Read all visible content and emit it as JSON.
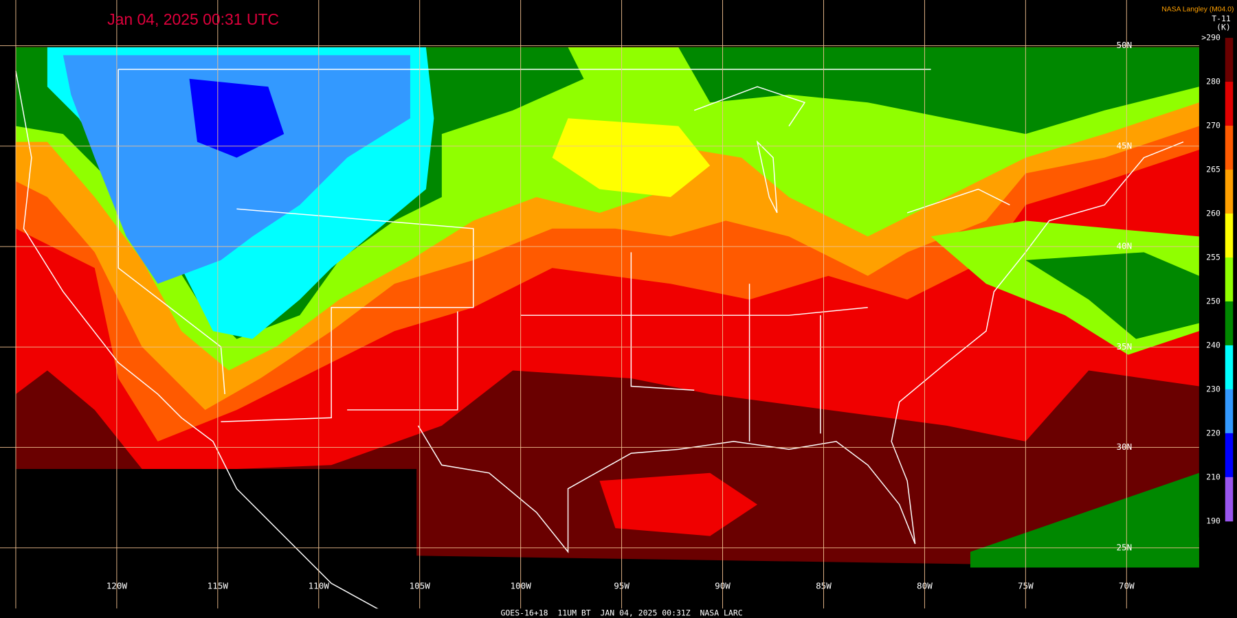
{
  "header": {
    "title": "Jan 04, 2025 00:31 UTC",
    "credit": "NASA Langley (M04.0)"
  },
  "colorbar": {
    "title": "T-11",
    "unit": "(K)",
    "labels": [
      ">290",
      "280",
      "270",
      "265",
      "260",
      "255",
      "250",
      "240",
      "230",
      "220",
      "210",
      "190"
    ],
    "colors": [
      "#6a0000",
      "#e00000",
      "#ff5a00",
      "#ffa000",
      "#ffff00",
      "#90ff00",
      "#008800",
      "#00ffff",
      "#3399ff",
      "#0000ff",
      "#9955ee"
    ]
  },
  "grid": {
    "longitudes": [
      "120W",
      "115W",
      "110W",
      "105W",
      "100W",
      "95W",
      "90W",
      "85W",
      "80W",
      "75W",
      "70W"
    ],
    "latitudes": [
      "50N",
      "45N",
      "40N",
      "35N",
      "30N",
      "25N"
    ]
  },
  "footer": "GOES-16+18  11UM BT  JAN 04, 2025 00:31Z  NASA LARC"
}
